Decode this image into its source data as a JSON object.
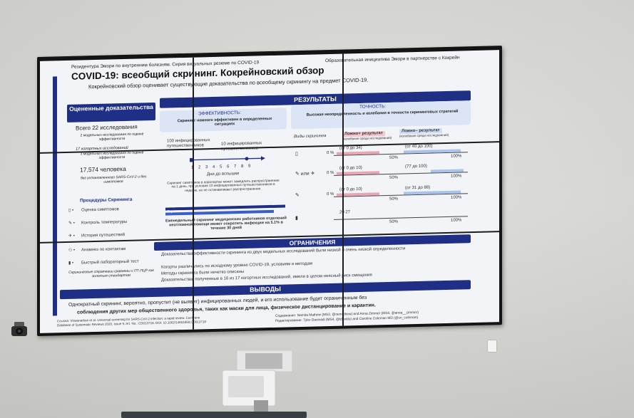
{
  "poster": {
    "header_left": "Резидентура Эмори по внутренним болезням. Серия визуальных резюме по COVID-19",
    "header_right": "Образовательная инициатива Эмори в партнерстве с Кокрейн",
    "title": "COVID-19: всеобщий скрининг. Кокрейновский обзор",
    "subtitle": "Кокрейновский обзор оценивает существующие доказательства по всеобщему скринингу на предмет COVID-19.",
    "left": {
      "heading": "Оцененные доказательства",
      "studies_total": "Всего 22 исследования",
      "modeling": "2 модельных исследования по оценке эффективности",
      "cohort": "17 когортных исследований",
      "modeling2": "3 модельных исследования по оценке эффективности",
      "people": "17,574 человека",
      "people_note": "без установленного SARS-CoV-2 и без симптомов",
      "procedures_heading": "Процедуры Скрининга",
      "procedures": [
        "Оценка симптомов",
        "Контроль температуры",
        "История путешествий",
        "Анамнез по контактам",
        "Быстрый лабораторный тест"
      ],
      "footnote": "Скрининговые стратегии сравнены с ПТ-ПЦР как золотым стандартом"
    },
    "results": {
      "heading": "РЕЗУЛЬТАТЫ",
      "eff_title": "ЭФФЕКТИВНОСТЬ:",
      "eff_text": "Скрининг немного эффективен в определенных ситуациях",
      "acc_title": "ТОЧНОСТЬ:",
      "acc_text": "Высокая неопределенность и колебания в точности скрининговых стратегий",
      "travelers_100": "100 инфицированных путешественников",
      "travelers_10": "10 инфицированных путешественников",
      "axis_ticks": [
        "1",
        "2",
        "3",
        "4",
        "5",
        "6",
        "7",
        "8",
        "9"
      ],
      "axis_label": "Дни до вспышки",
      "airport_text": "Скрининг симптомов в аэропортах может замедлить распространение на 1 день, при условии 10 инфицированных путешественников в неделю, но не останавливает распространение.",
      "legend_no": "Отсутствие скрининга",
      "legend_yes": "Скрининг",
      "weekly_text": "Еженедельный скрининг медицинских работников отделений неотложной помощи может сократить инфекции на 5.1% в течение 30 дней",
      "screen_types": "Виды скрининга",
      "fp_title": "Ложно+ результат",
      "fp_sub": "(колебания среди исследований)",
      "fn_title": "Ложно– результат",
      "fn_sub": "(колебания среди исследований)",
      "rows": [
        {
          "fp": "(от 0 до 34)",
          "fn": "(от 40 до 100)"
        },
        {
          "fp": "(от 0 до 10)",
          "fn": "(77 до 100)"
        },
        {
          "fp": "(от 0 до 10)",
          "fn": "(от 31 до 88)"
        },
        {
          "fp": "20 27",
          "fn": ""
        }
      ],
      "pct_50": "50%",
      "pct_100": "100%",
      "pct_0": "0 %",
      "ili": "или"
    },
    "limits": {
      "heading": "ОГРАНИЧЕНИЯ",
      "items": [
        "Доказательства эффективности скрининга из двух модельных исследований были низкой и очень низкой определенности",
        "Когорты различались по исходному уровню COVID-19, условиям и методам",
        "Методы скрининга были нечетко описаны",
        "Доказательства, полученные в 16 из 17 когортных исследований, имели в целом неясный риск смещения"
      ]
    },
    "conclusions": {
      "heading": "ВЫВОДЫ",
      "text1": "Однократный скрининг, вероятно, пропустит (не выявит) инфицированных людей, и его использование будет ограниченным без",
      "text2": "соблюдения других мер общественного здоровья, таких как маски для лица, физическое дистанцирование и карантин."
    },
    "footer_left1": "Ссылка: Viswanathan et al. Universal screening for SARS-CoV-2 infection: a rapid review. Cochrane",
    "footer_left2": "Database of Systematic Reviews 2020, Issue 9. Art. No.: CD013718. DOI: 10.1002/14651858.CD013718",
    "footer_right1": "Содержание: Namita Mathew (MS3, @nemathew) and Anna Zimmer (MS4, @anna__zimmer)",
    "footer_right2": "Редактирование: Tyler Davinadi (MS4, @tdavidu) and Caroline Coleman MD (@cn_coleman)"
  },
  "colors": {
    "navy": "#1f2f86",
    "accent_blue": "#3a5fc8",
    "pink": "#e8a5b3",
    "light_blue": "#a9c3ec"
  }
}
